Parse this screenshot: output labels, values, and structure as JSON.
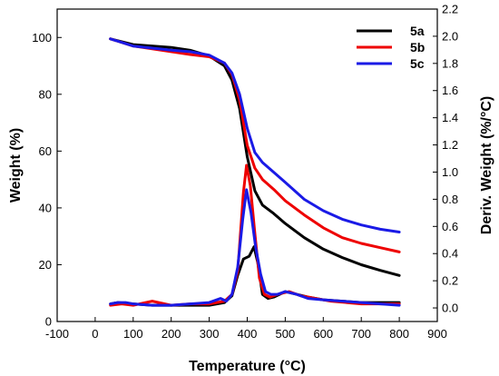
{
  "chart_data": {
    "type": "line",
    "xlabel": "Temperature (°C)",
    "ylabel_left": "Weight (%)",
    "ylabel_right": "Deriv. Weight (%/°C)",
    "xlim": [
      -100,
      900
    ],
    "ylim_left": [
      0,
      110
    ],
    "ylim_right": [
      -0.1,
      2.2
    ],
    "x_ticks": [
      -100,
      0,
      100,
      200,
      300,
      400,
      500,
      600,
      700,
      800,
      900
    ],
    "y_left_ticks": [
      0,
      20,
      40,
      60,
      80,
      100
    ],
    "y_right_ticks": [
      0.0,
      0.2,
      0.4,
      0.6,
      0.8,
      1.0,
      1.2,
      1.4,
      1.6,
      1.8,
      2.0,
      2.2
    ],
    "grid": false,
    "legend_position": "top-right",
    "series": [
      {
        "name": "5a",
        "color": "#000000",
        "axis": "left",
        "kind": "weight",
        "x": [
          40,
          100,
          200,
          250,
          300,
          340,
          360,
          380,
          400,
          420,
          440,
          470,
          500,
          550,
          600,
          650,
          700,
          750,
          800
        ],
        "y": [
          99.5,
          97.5,
          96.5,
          95.5,
          93.5,
          90,
          85,
          75,
          58,
          46,
          41,
          38,
          34.5,
          29.5,
          25.5,
          22.5,
          20,
          18,
          16.2
        ]
      },
      {
        "name": "5b",
        "color": "#ee0000",
        "axis": "left",
        "kind": "weight",
        "x": [
          40,
          100,
          200,
          250,
          300,
          340,
          360,
          380,
          400,
          420,
          440,
          470,
          500,
          550,
          600,
          650,
          700,
          750,
          800
        ],
        "y": [
          99.5,
          97,
          95,
          94,
          93.2,
          91,
          87,
          78,
          62,
          54,
          50,
          46.5,
          42.5,
          37.5,
          33,
          29.5,
          27.5,
          26,
          24.5
        ]
      },
      {
        "name": "5c",
        "color": "#1a1ae6",
        "axis": "left",
        "kind": "weight",
        "x": [
          40,
          100,
          200,
          250,
          300,
          340,
          360,
          380,
          400,
          420,
          440,
          470,
          500,
          550,
          600,
          650,
          700,
          750,
          800
        ],
        "y": [
          99.5,
          97,
          95.5,
          95,
          93.8,
          91,
          87.5,
          80,
          68,
          59.5,
          56,
          52.5,
          49,
          43,
          39,
          36,
          34,
          32.5,
          31.5
        ]
      },
      {
        "name": "5a",
        "color": "#000000",
        "axis": "right",
        "kind": "derivative",
        "x": [
          40,
          60,
          100,
          150,
          200,
          250,
          300,
          340,
          360,
          375,
          390,
          405,
          418,
          428,
          440,
          455,
          470,
          500,
          530,
          560,
          600,
          650,
          700,
          750,
          800
        ],
        "y": [
          0.03,
          0.04,
          0.03,
          0.02,
          0.02,
          0.02,
          0.02,
          0.04,
          0.09,
          0.24,
          0.36,
          0.38,
          0.45,
          0.33,
          0.1,
          0.07,
          0.08,
          0.12,
          0.1,
          0.08,
          0.06,
          0.05,
          0.04,
          0.04,
          0.04
        ]
      },
      {
        "name": "5b",
        "color": "#ee0000",
        "axis": "right",
        "kind": "derivative",
        "x": [
          40,
          70,
          100,
          150,
          200,
          250,
          300,
          340,
          360,
          375,
          390,
          398,
          408,
          420,
          432,
          445,
          460,
          480,
          510,
          540,
          580,
          620,
          700,
          800
        ],
        "y": [
          0.02,
          0.03,
          0.02,
          0.05,
          0.02,
          0.03,
          0.03,
          0.05,
          0.1,
          0.27,
          0.85,
          1.05,
          0.9,
          0.55,
          0.22,
          0.1,
          0.08,
          0.1,
          0.12,
          0.09,
          0.07,
          0.05,
          0.03,
          0.03
        ]
      },
      {
        "name": "5c",
        "color": "#1a1ae6",
        "axis": "right",
        "kind": "derivative",
        "x": [
          40,
          60,
          80,
          100,
          150,
          200,
          250,
          300,
          330,
          345,
          360,
          375,
          388,
          398,
          410,
          422,
          435,
          448,
          462,
          480,
          500,
          530,
          560,
          600,
          650,
          700,
          800
        ],
        "y": [
          0.03,
          0.04,
          0.04,
          0.03,
          0.02,
          0.02,
          0.03,
          0.04,
          0.07,
          0.05,
          0.1,
          0.3,
          0.65,
          0.87,
          0.7,
          0.45,
          0.25,
          0.12,
          0.1,
          0.1,
          0.12,
          0.1,
          0.07,
          0.06,
          0.05,
          0.04,
          0.02
        ]
      }
    ]
  }
}
